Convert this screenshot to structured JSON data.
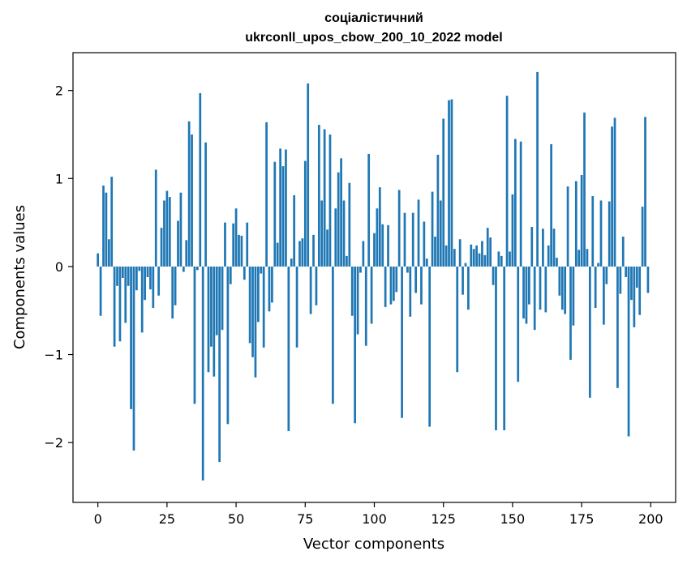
{
  "chart_data": {
    "type": "bar",
    "title": "соціалістичний",
    "subtitle": "ukrconll_upos_cbow_200_10_2022 model",
    "xlabel": "Vector components",
    "ylabel": "Components values",
    "xlim": [
      -9,
      209
    ],
    "ylim": [
      -2.68,
      2.43
    ],
    "xticks": [
      0,
      25,
      50,
      75,
      100,
      125,
      150,
      175,
      200
    ],
    "xtick_labels": [
      "0",
      "25",
      "50",
      "75",
      "100",
      "125",
      "150",
      "175",
      "200"
    ],
    "yticks": [
      -2,
      -1,
      0,
      1,
      2
    ],
    "ytick_labels": [
      "−2",
      "−1",
      "0",
      "1",
      "2"
    ],
    "grid": false,
    "bar_color": "#1f77b4",
    "x": [
      0,
      1,
      2,
      3,
      4,
      5,
      6,
      7,
      8,
      9,
      10,
      11,
      12,
      13,
      14,
      15,
      16,
      17,
      18,
      19,
      20,
      21,
      22,
      23,
      24,
      25,
      26,
      27,
      28,
      29,
      30,
      31,
      32,
      33,
      34,
      35,
      36,
      37,
      38,
      39,
      40,
      41,
      42,
      43,
      44,
      45,
      46,
      47,
      48,
      49,
      50,
      51,
      52,
      53,
      54,
      55,
      56,
      57,
      58,
      59,
      60,
      61,
      62,
      63,
      64,
      65,
      66,
      67,
      68,
      69,
      70,
      71,
      72,
      73,
      74,
      75,
      76,
      77,
      78,
      79,
      80,
      81,
      82,
      83,
      84,
      85,
      86,
      87,
      88,
      89,
      90,
      91,
      92,
      93,
      94,
      95,
      96,
      97,
      98,
      99,
      100,
      101,
      102,
      103,
      104,
      105,
      106,
      107,
      108,
      109,
      110,
      111,
      112,
      113,
      114,
      115,
      116,
      117,
      118,
      119,
      120,
      121,
      122,
      123,
      124,
      125,
      126,
      127,
      128,
      129,
      130,
      131,
      132,
      133,
      134,
      135,
      136,
      137,
      138,
      139,
      140,
      141,
      142,
      143,
      144,
      145,
      146,
      147,
      148,
      149,
      150,
      151,
      152,
      153,
      154,
      155,
      156,
      157,
      158,
      159,
      160,
      161,
      162,
      163,
      164,
      165,
      166,
      167,
      168,
      169,
      170,
      171,
      172,
      173,
      174,
      175,
      176,
      177,
      178,
      179,
      180,
      181,
      182,
      183,
      184,
      185,
      186,
      187,
      188,
      189,
      190,
      191,
      192,
      193,
      194,
      195,
      196,
      197,
      198,
      199
    ],
    "values": [
      0.15,
      -0.56,
      0.92,
      0.84,
      0.31,
      1.02,
      -0.91,
      -0.22,
      -0.85,
      -0.13,
      -0.64,
      -0.22,
      -1.62,
      -2.09,
      -0.27,
      -0.05,
      -0.75,
      -0.38,
      -0.12,
      -0.26,
      -0.47,
      1.1,
      -0.33,
      0.44,
      0.75,
      0.86,
      0.79,
      -0.59,
      -0.44,
      0.52,
      0.84,
      -0.06,
      0.3,
      1.65,
      1.5,
      -1.56,
      -0.04,
      1.97,
      -2.43,
      1.41,
      -1.2,
      -0.91,
      -1.25,
      -0.78,
      -2.22,
      -0.72,
      0.5,
      -1.79,
      -0.2,
      0.49,
      0.66,
      0.36,
      0.35,
      -0.15,
      0.5,
      -0.87,
      -1.03,
      -1.26,
      -0.63,
      -0.08,
      -0.92,
      1.64,
      -0.51,
      -0.41,
      1.19,
      0.27,
      1.34,
      1.14,
      1.33,
      -1.87,
      0.09,
      0.81,
      -0.92,
      0.29,
      0.32,
      1.2,
      2.08,
      -0.54,
      0.36,
      -0.44,
      1.61,
      0.75,
      1.56,
      0.42,
      1.5,
      -1.56,
      0.66,
      1.07,
      1.23,
      0.75,
      0.12,
      0.95,
      -0.56,
      -1.78,
      -0.77,
      -0.07,
      0.29,
      -0.9,
      1.28,
      -0.65,
      0.38,
      0.66,
      0.9,
      0.48,
      -0.46,
      0.47,
      -0.43,
      -0.39,
      -0.29,
      0.87,
      -1.72,
      0.61,
      -0.07,
      -0.57,
      0.61,
      -0.3,
      0.76,
      -0.43,
      0.51,
      0.09,
      -1.82,
      0.85,
      0.34,
      1.27,
      0.75,
      1.68,
      0.24,
      1.89,
      1.9,
      0.2,
      -1.2,
      0.31,
      -0.32,
      0.04,
      -0.49,
      0.25,
      0.2,
      0.24,
      0.15,
      0.29,
      0.13,
      0.44,
      0.33,
      -0.21,
      -1.86,
      0.17,
      0.12,
      -1.86,
      1.94,
      0.17,
      0.82,
      1.45,
      -1.31,
      1.42,
      -0.59,
      -0.65,
      -0.43,
      0.45,
      -0.72,
      2.21,
      -0.49,
      0.43,
      -0.52,
      0.24,
      1.39,
      0.43,
      0.1,
      -0.33,
      -0.49,
      -0.54,
      0.91,
      -1.06,
      -0.67,
      0.97,
      0.19,
      1.04,
      1.75,
      0.2,
      -1.49,
      0.8,
      -0.47,
      0.04,
      0.75,
      -0.66,
      -0.2,
      0.74,
      1.59,
      1.69,
      -1.38,
      -0.31,
      0.34,
      -0.12,
      -1.93,
      -0.38,
      -0.69,
      -0.24,
      -0.55,
      0.68,
      1.7,
      -0.3
    ]
  }
}
